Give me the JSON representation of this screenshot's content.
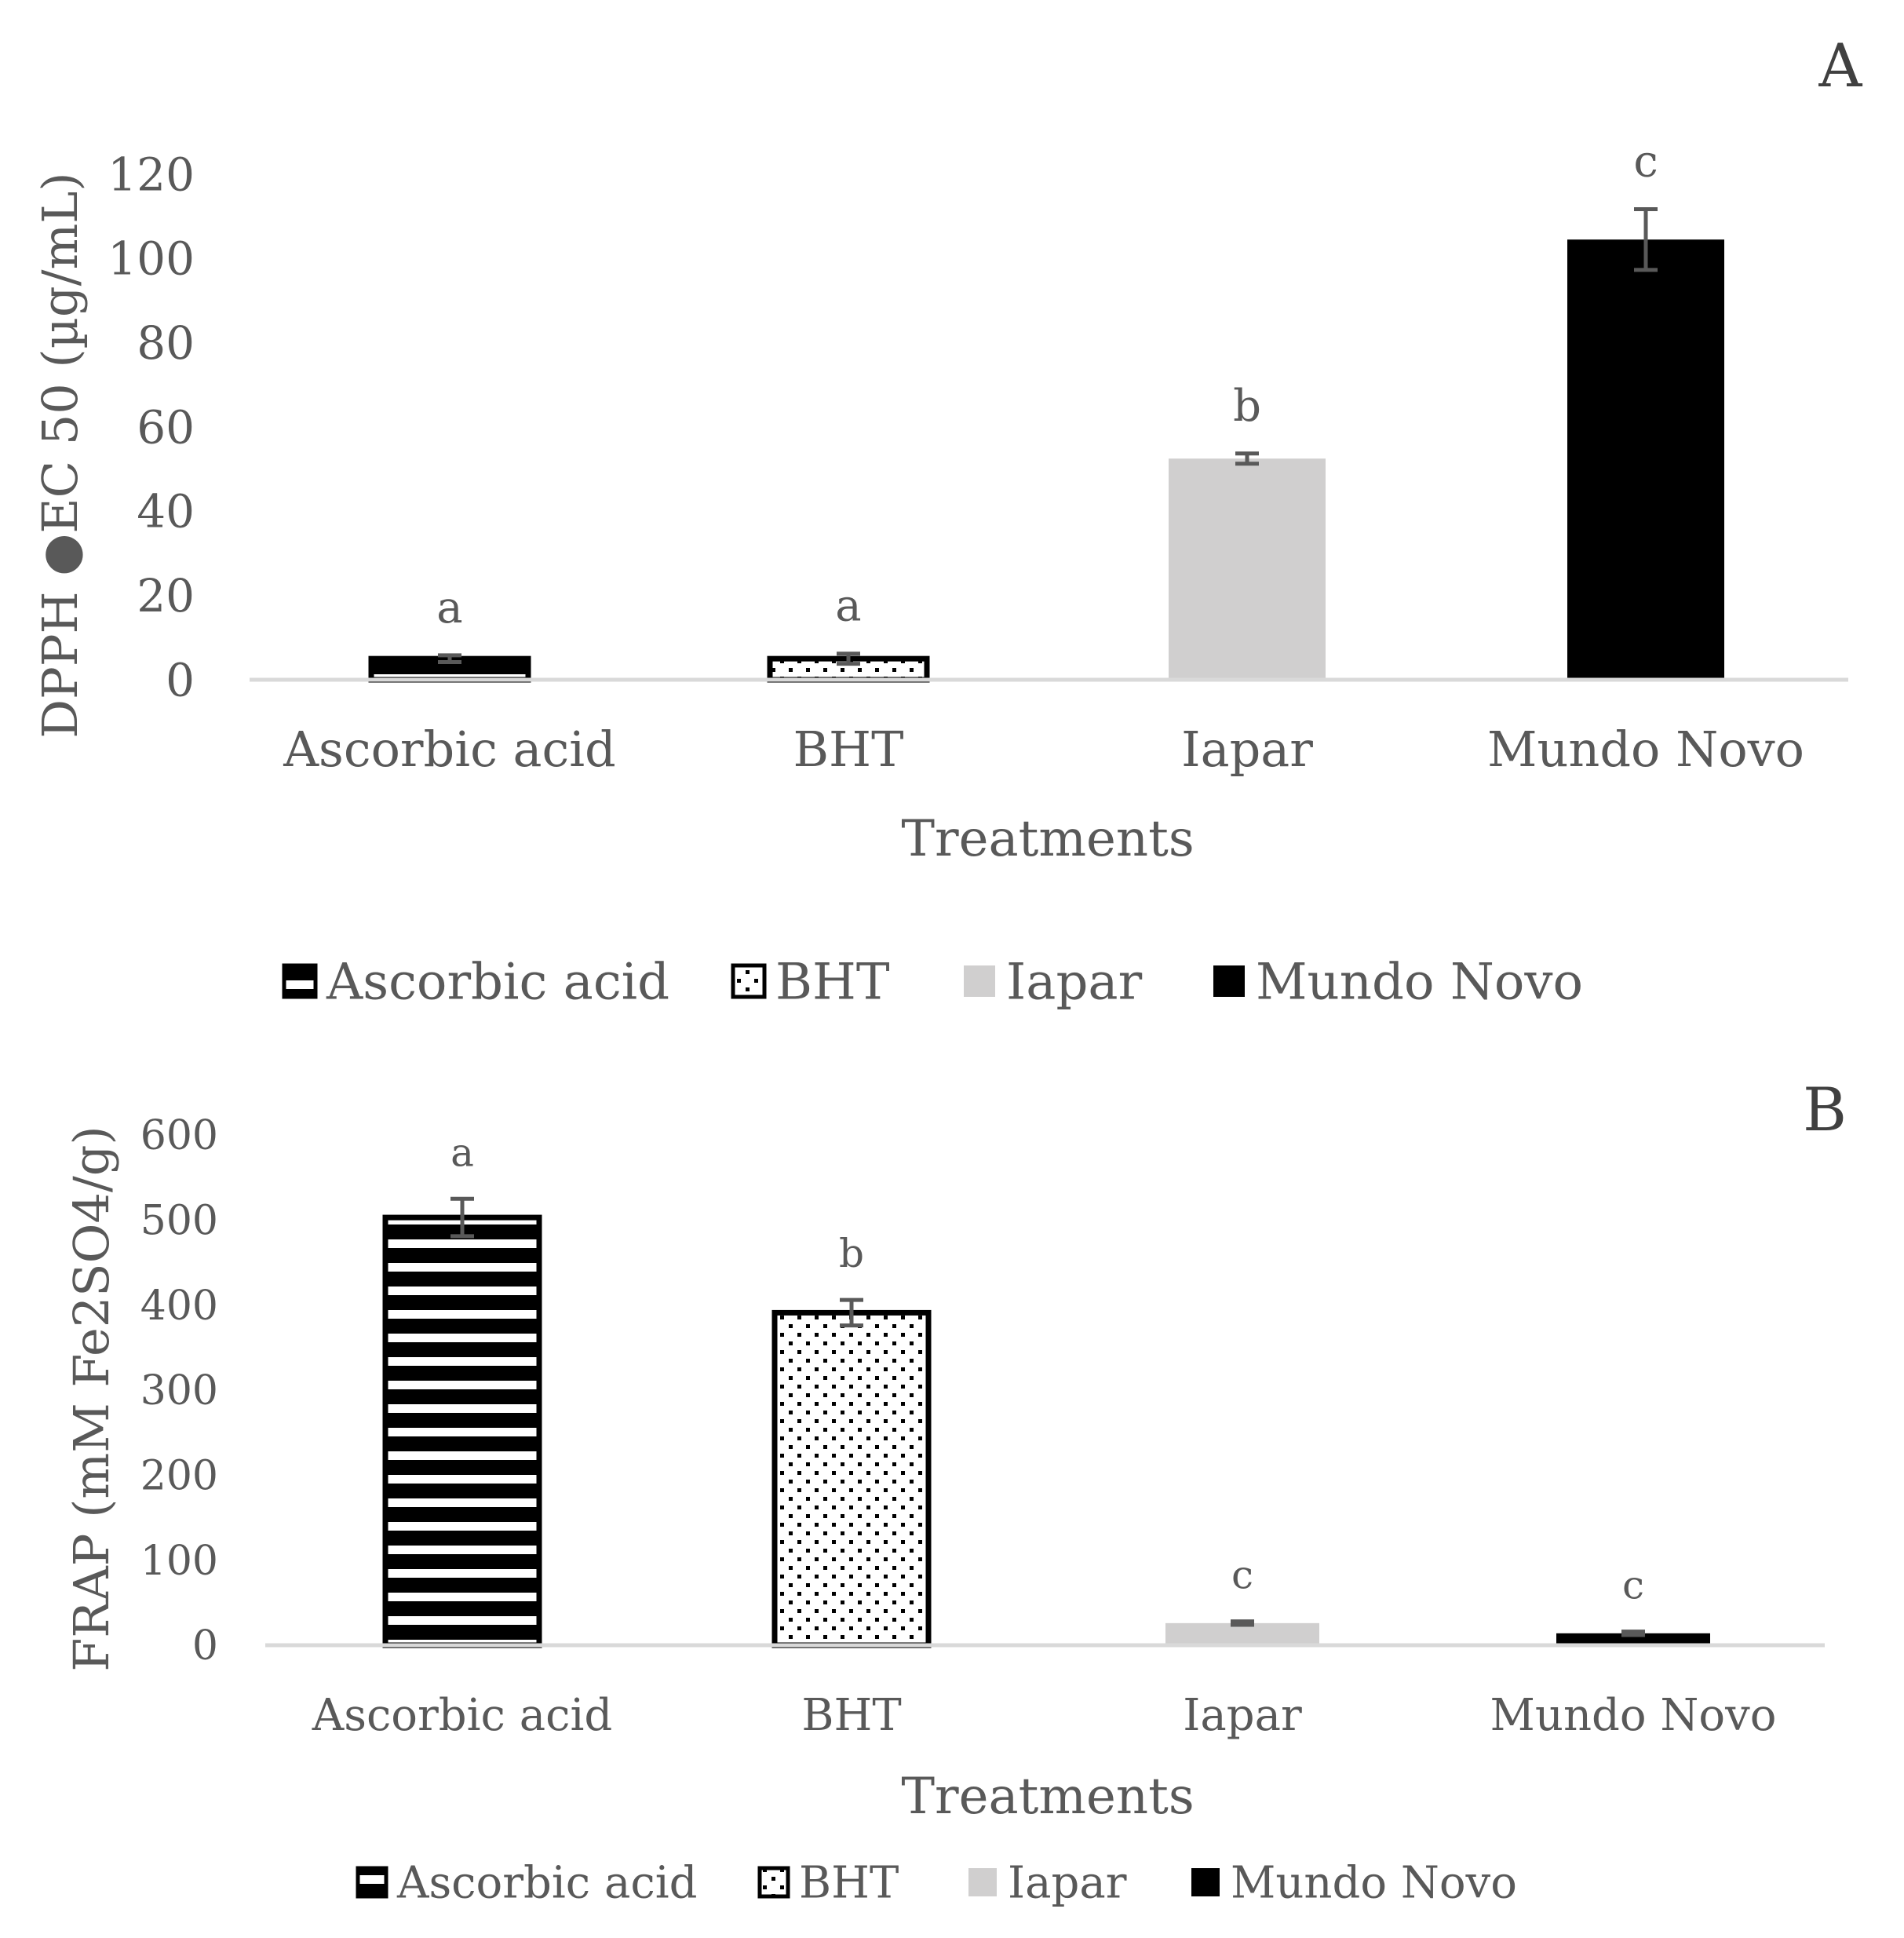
{
  "chart_data": [
    {
      "panel": "A",
      "type": "bar",
      "categories": [
        "Ascorbic acid",
        "BHT",
        "Iapar",
        "Mundo Novo"
      ],
      "values": [
        5,
        5,
        52.5,
        104.5
      ],
      "errors": [
        0.8,
        1.2,
        1.2,
        7.2
      ],
      "letters": [
        "a",
        "a",
        "b",
        "c"
      ],
      "xlabel": "Treatments",
      "ylabel": "DPPH ●EC 50 (µg/mL)",
      "ylim": [
        0,
        120
      ],
      "yticks": [
        "0",
        "20",
        "40",
        "60",
        "80",
        "100",
        "120"
      ],
      "legend": [
        "Ascorbic acid",
        "BHT",
        "Iapar",
        "Mundo Novo"
      ],
      "legend_position": "bottom",
      "grid": false
    },
    {
      "panel": "B",
      "type": "bar",
      "categories": [
        "Ascorbic acid",
        "BHT",
        "Iapar",
        "Mundo Novo"
      ],
      "values": [
        503,
        391,
        26,
        14
      ],
      "errors": [
        22,
        15,
        2,
        2
      ],
      "letters": [
        "a",
        "b",
        "c",
        "c"
      ],
      "xlabel": "Treatments",
      "ylabel": "FRAP (mM Fe2SO4/g)",
      "ylim": [
        0,
        600
      ],
      "yticks": [
        "0",
        "100",
        "200",
        "300",
        "400",
        "500",
        "600"
      ],
      "legend": [
        "Ascorbic acid",
        "BHT",
        "Iapar",
        "Mundo Novo"
      ],
      "legend_position": "bottom",
      "grid": false
    }
  ],
  "styles": {
    "series_fill": [
      "pattern-stripes",
      "pattern-dots",
      "#d0cfcf",
      "#000000"
    ],
    "axis_color": "#d9d9d9",
    "error_color": "#595959",
    "text_color": "#595959"
  }
}
